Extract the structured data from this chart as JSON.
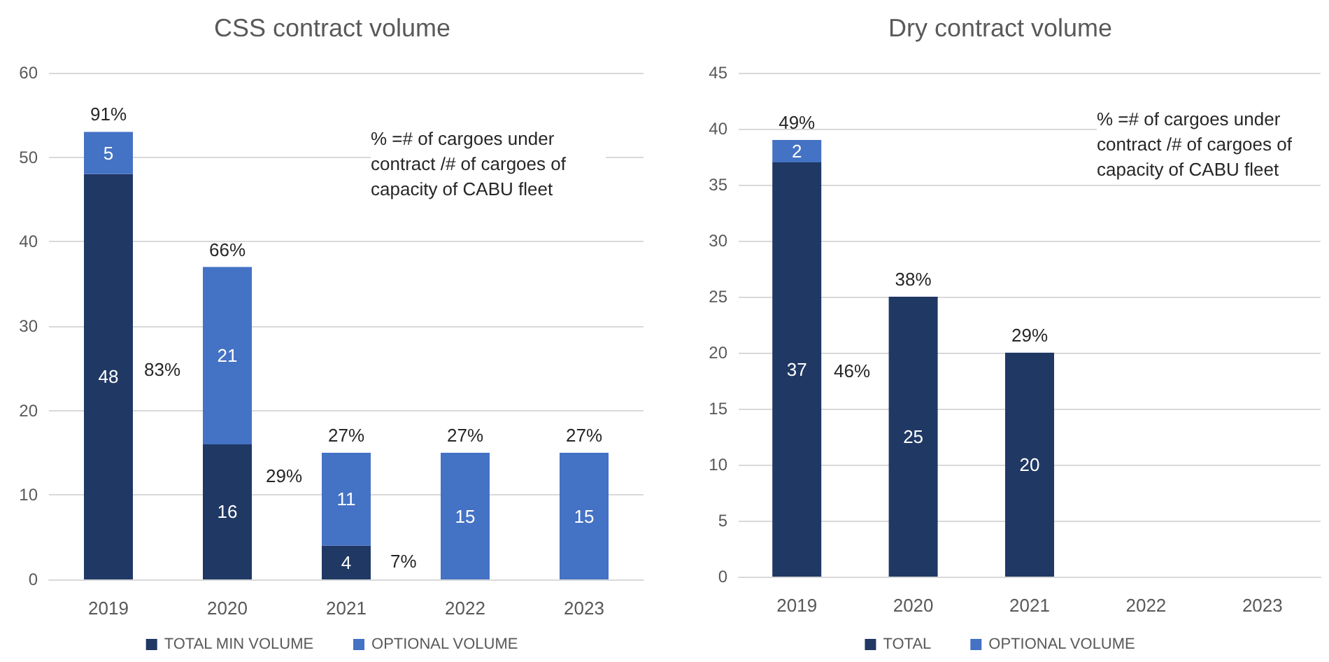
{
  "chart_data": [
    {
      "type": "bar",
      "title": "CSS contract volume",
      "categories": [
        "2019",
        "2020",
        "2021",
        "2022",
        "2023"
      ],
      "stacked": true,
      "series": [
        {
          "name": "TOTAL MIN VOLUME",
          "color": "#203864",
          "values": [
            48,
            16,
            4,
            null,
            null
          ]
        },
        {
          "name": "OPTIONAL VOLUME",
          "color": "#4472c4",
          "values": [
            5,
            21,
            11,
            15,
            15
          ]
        }
      ],
      "ylim": [
        0,
        60
      ],
      "yticks": [
        0,
        10,
        20,
        30,
        40,
        50,
        60
      ],
      "grid": "y",
      "legend": "bottom",
      "data_labels": true,
      "annotations": [
        {
          "text": "91%",
          "x": "2019",
          "y": 53
        },
        "83%",
        {
          "text": "66%",
          "x": "2020",
          "y": 37
        },
        "29%",
        {
          "text": "27%",
          "x": "2021",
          "y": 15
        },
        "7%",
        {
          "text": "27%",
          "x": "2022",
          "y": 15
        },
        {
          "text": "27%",
          "x": "2023",
          "y": 15
        },
        "% =# of cargoes under contract /# of cargoes of capacity of CABU fleet"
      ]
    },
    {
      "type": "bar",
      "title": "Dry contract volume",
      "categories": [
        "2019",
        "2020",
        "2021",
        "2022",
        "2023"
      ],
      "stacked": true,
      "series": [
        {
          "name": "TOTAL",
          "color": "#203864",
          "values": [
            37,
            25,
            20,
            null,
            null
          ]
        },
        {
          "name": "OPTIONAL VOLUME",
          "color": "#4472c4",
          "values": [
            2,
            null,
            null,
            null,
            null
          ]
        }
      ],
      "ylim": [
        0,
        45
      ],
      "yticks": [
        0,
        5,
        10,
        15,
        20,
        25,
        30,
        35,
        40,
        45
      ],
      "grid": "y",
      "legend": "bottom",
      "data_labels": true,
      "annotations": [
        {
          "text": "49%",
          "x": "2019",
          "y": 39
        },
        "46%",
        {
          "text": "38%",
          "x": "2020",
          "y": 25
        },
        {
          "text": "29%",
          "x": "2021",
          "y": 20
        },
        "% =# of cargoes under contract /# of cargoes of capacity of CABU fleet"
      ]
    }
  ]
}
